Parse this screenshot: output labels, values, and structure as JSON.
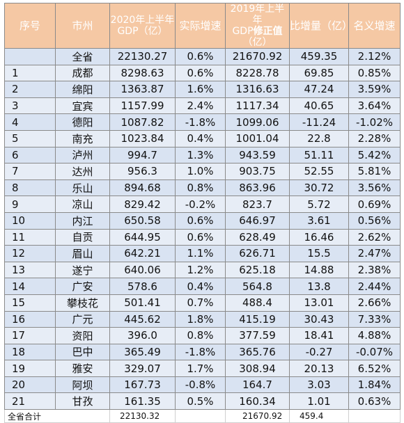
{
  "headers": {
    "index": "序号",
    "city": "市州",
    "gdp2020_line1": "2020年上半年",
    "gdp2020_line2": "GDP（亿）",
    "real_growth": "实际增速",
    "gdp2019_line1": "2019年上半年",
    "gdp2019_line2a": "GDP",
    "gdp2019_line2b": "修正值",
    "gdp2019_line3": "（亿）",
    "increase": "比增量（亿）",
    "nominal_growth": "名义增速"
  },
  "rows": [
    {
      "index": "",
      "city": "全省",
      "gdp2020": "22130.27",
      "real_growth": "0.6%",
      "gdp2019": "21670.92",
      "increase": "459.35",
      "nominal_growth": "2.12%"
    },
    {
      "index": "1",
      "city": "成都",
      "gdp2020": "8298.63",
      "real_growth": "0.6%",
      "gdp2019": "8228.78",
      "increase": "69.85",
      "nominal_growth": "0.85%"
    },
    {
      "index": "2",
      "city": "绵阳",
      "gdp2020": "1363.87",
      "real_growth": "1.6%",
      "gdp2019": "1316.63",
      "increase": "47.24",
      "nominal_growth": "3.59%"
    },
    {
      "index": "3",
      "city": "宜宾",
      "gdp2020": "1157.99",
      "real_growth": "2.4%",
      "gdp2019": "1117.34",
      "increase": "40.65",
      "nominal_growth": "3.64%"
    },
    {
      "index": "4",
      "city": "德阳",
      "gdp2020": "1087.82",
      "real_growth": "-1.8%",
      "gdp2019": "1099.06",
      "increase": "-11.24",
      "nominal_growth": "-1.02%"
    },
    {
      "index": "5",
      "city": "南充",
      "gdp2020": "1023.84",
      "real_growth": "0.4%",
      "gdp2019": "1001.04",
      "increase": "22.8",
      "nominal_growth": "2.28%"
    },
    {
      "index": "6",
      "city": "泸州",
      "gdp2020": "994.7",
      "real_growth": "1.3%",
      "gdp2019": "943.59",
      "increase": "51.11",
      "nominal_growth": "5.42%"
    },
    {
      "index": "7",
      "city": "达州",
      "gdp2020": "956.3",
      "real_growth": "1.0%",
      "gdp2019": "903.75",
      "increase": "52.55",
      "nominal_growth": "5.81%"
    },
    {
      "index": "8",
      "city": "乐山",
      "gdp2020": "894.68",
      "real_growth": "0.8%",
      "gdp2019": "863.96",
      "increase": "30.72",
      "nominal_growth": "3.56%"
    },
    {
      "index": "9",
      "city": "凉山",
      "gdp2020": "829.42",
      "real_growth": "-0.2%",
      "gdp2019": "823.7",
      "increase": "5.72",
      "nominal_growth": "0.69%"
    },
    {
      "index": "10",
      "city": "内江",
      "gdp2020": "650.58",
      "real_growth": "0.6%",
      "gdp2019": "646.97",
      "increase": "3.61",
      "nominal_growth": "0.56%"
    },
    {
      "index": "11",
      "city": "自贡",
      "gdp2020": "644.95",
      "real_growth": "0.6%",
      "gdp2019": "628.49",
      "increase": "16.46",
      "nominal_growth": "2.62%"
    },
    {
      "index": "12",
      "city": "眉山",
      "gdp2020": "642.21",
      "real_growth": "1.1%",
      "gdp2019": "626.71",
      "increase": "15.5",
      "nominal_growth": "2.47%"
    },
    {
      "index": "13",
      "city": "遂宁",
      "gdp2020": "640.06",
      "real_growth": "1.2%",
      "gdp2019": "625.18",
      "increase": "14.88",
      "nominal_growth": "2.38%"
    },
    {
      "index": "14",
      "city": "广安",
      "gdp2020": "578.6",
      "real_growth": "0.4%",
      "gdp2019": "564.8",
      "increase": "13.8",
      "nominal_growth": "2.44%"
    },
    {
      "index": "15",
      "city": "攀枝花",
      "gdp2020": "501.41",
      "real_growth": "0.7%",
      "gdp2019": "488.4",
      "increase": "13.01",
      "nominal_growth": "2.66%"
    },
    {
      "index": "16",
      "city": "广元",
      "gdp2020": "445.62",
      "real_growth": "1.8%",
      "gdp2019": "415.19",
      "increase": "30.43",
      "nominal_growth": "7.33%"
    },
    {
      "index": "17",
      "city": "资阳",
      "gdp2020": "396.0",
      "real_growth": "0.8%",
      "gdp2019": "377.59",
      "increase": "18.41",
      "nominal_growth": "4.88%"
    },
    {
      "index": "18",
      "city": "巴中",
      "gdp2020": "365.49",
      "real_growth": "-1.8%",
      "gdp2019": "365.76",
      "increase": "-0.27",
      "nominal_growth": "-0.07%"
    },
    {
      "index": "19",
      "city": "雅安",
      "gdp2020": "329.07",
      "real_growth": "1.7%",
      "gdp2019": "308.94",
      "increase": "20.13",
      "nominal_growth": "6.52%"
    },
    {
      "index": "20",
      "city": "阿坝",
      "gdp2020": "167.73",
      "real_growth": "-0.8%",
      "gdp2019": "164.7",
      "increase": "3.03",
      "nominal_growth": "1.84%"
    },
    {
      "index": "21",
      "city": "甘孜",
      "gdp2020": "161.35",
      "real_growth": "0.5%",
      "gdp2019": "160.34",
      "increase": "1.01",
      "nominal_growth": "0.63%"
    }
  ],
  "footer": {
    "label": "全省合计",
    "gdp2020": "22130.32",
    "gdp2019": "21670.92",
    "increase": "459.4"
  }
}
